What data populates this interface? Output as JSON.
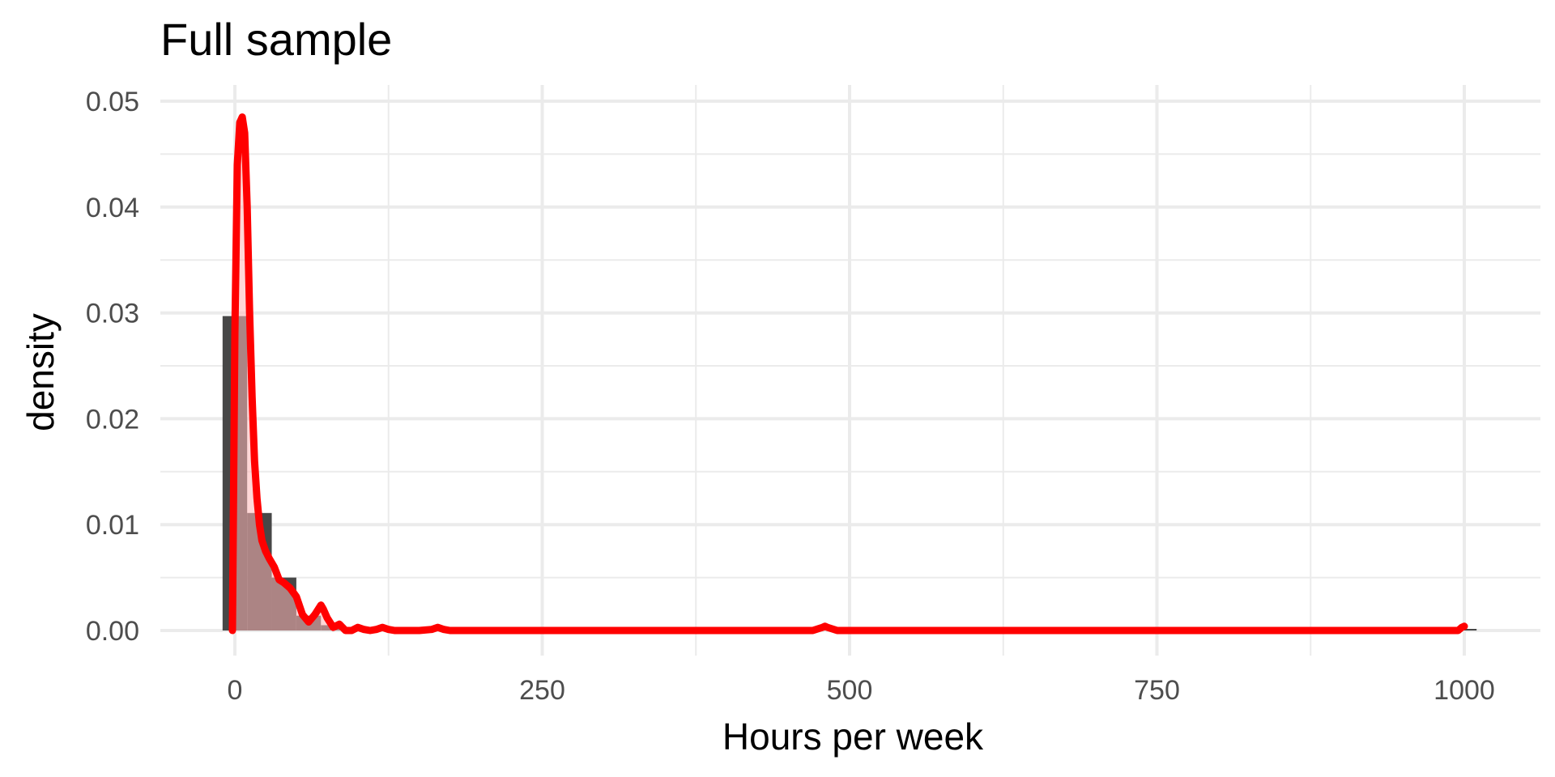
{
  "chart_data": {
    "type": "histogram",
    "title": "Full sample",
    "xlabel": "Hours per week",
    "ylabel": "density",
    "xlim": [
      -60,
      1060
    ],
    "ylim": [
      -0.0025,
      0.0525
    ],
    "x_ticks": [
      0,
      250,
      500,
      750,
      1000
    ],
    "x_tick_labels": [
      "0",
      "250",
      "500",
      "750",
      "1000"
    ],
    "y_ticks": [
      0,
      0.01,
      0.02,
      0.03,
      0.04,
      0.05
    ],
    "y_tick_labels": [
      "0.00",
      "0.01",
      "0.02",
      "0.03",
      "0.04",
      "0.05"
    ],
    "grid": true,
    "histogram": {
      "bin_width": 20,
      "bins": [
        {
          "x0": -10,
          "x1": 10,
          "density": 0.0297
        },
        {
          "x0": 10,
          "x1": 30,
          "density": 0.0111
        },
        {
          "x0": 30,
          "x1": 50,
          "density": 0.005
        },
        {
          "x0": 50,
          "x1": 70,
          "density": 0.0014
        },
        {
          "x0": 70,
          "x1": 90,
          "density": 0.0005
        },
        {
          "x0": 90,
          "x1": 110,
          "density": 0.0002
        },
        {
          "x0": 110,
          "x1": 130,
          "density": 0.0001
        },
        {
          "x0": 130,
          "x1": 150,
          "density": 5e-05
        },
        {
          "x0": 150,
          "x1": 170,
          "density": 5e-05
        },
        {
          "x0": 170,
          "x1": 190,
          "density": 5e-05
        },
        {
          "x0": 470,
          "x1": 490,
          "density": 5e-05
        },
        {
          "x0": 990,
          "x1": 1010,
          "density": 5e-05
        }
      ]
    },
    "density_curve": {
      "x": [
        -2,
        0,
        2,
        4,
        6,
        8,
        10,
        12,
        14,
        16,
        18,
        20,
        22,
        25,
        28,
        32,
        36,
        40,
        45,
        50,
        55,
        60,
        65,
        70,
        72,
        75,
        80,
        85,
        90,
        95,
        100,
        105,
        110,
        115,
        120,
        125,
        130,
        140,
        150,
        160,
        165,
        170,
        175,
        180,
        200,
        300,
        400,
        470,
        478,
        480,
        482,
        490,
        500,
        600,
        700,
        800,
        900,
        995,
        998,
        1000
      ],
      "y": [
        0.0,
        0.028,
        0.044,
        0.048,
        0.0485,
        0.047,
        0.04,
        0.03,
        0.022,
        0.016,
        0.0125,
        0.01,
        0.0085,
        0.0075,
        0.0068,
        0.006,
        0.0048,
        0.0045,
        0.004,
        0.0032,
        0.0015,
        0.0008,
        0.0015,
        0.0024,
        0.002,
        0.0012,
        0.0003,
        0.0006,
        0.0,
        0.0,
        0.0003,
        0.0001,
        0.0,
        0.0001,
        0.0003,
        0.0001,
        0.0,
        0.0,
        0.0,
        0.0001,
        0.0003,
        0.0001,
        0.0,
        0.0,
        0.0,
        0.0,
        0.0,
        0.0,
        0.0003,
        0.0004,
        0.0003,
        0.0,
        0.0,
        0.0,
        0.0,
        0.0,
        0.0,
        0.0,
        0.0003,
        0.0004
      ]
    },
    "colors": {
      "bars": "#474747",
      "curve": "#ff0000",
      "curve_fill": "#ffb6b6",
      "grid": "#ebebeb",
      "tick_text": "#4d4d4d",
      "text": "#000000"
    }
  }
}
